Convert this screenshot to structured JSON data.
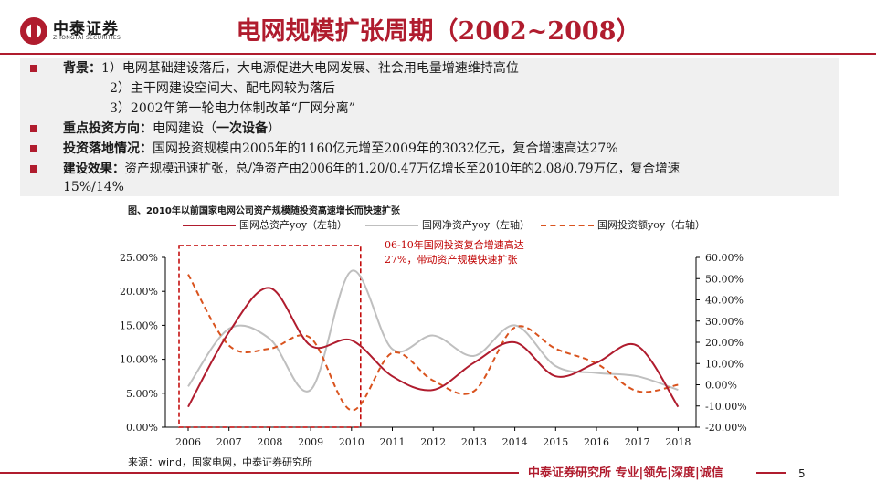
{
  "header": {
    "logo_text": "中泰证券",
    "logo_subtext": "ZHONGTAI SECURITIES",
    "title": "电网规模扩张周期（2002~2008）"
  },
  "summary": {
    "background_label": "背景：",
    "background_items": [
      "1）电网基础建设落后，大电源促进大电网发展、社会用电量增速维持高位",
      "2）主干网建设空间大、配电网较为落后",
      "3）2002年第一轮电力体制改革“厂网分离”"
    ],
    "focus_label": "重点投资方向：",
    "focus_text": "电网建设（",
    "focus_bold": "一次设备",
    "focus_close": "）",
    "invest_label": "投资落地情况：",
    "invest_text": "国网投资规模由2005年的1160亿元增至2009年的3032亿元，复合增速高达27%",
    "effect_label": "建设效果：",
    "effect_text_1": "资产规模迅速扩张，总/净资产由2006年的1.20/0.47万亿增长至2010年的2.08/0.79万亿，复合增速",
    "effect_text_2": "15%/14%"
  },
  "chart_data": {
    "type": "line",
    "title": "图、2010年以前国家电网公司资产规模随投资高速增长而快速扩张",
    "x": [
      2006,
      2007,
      2008,
      2009,
      2010,
      2011,
      2012,
      2013,
      2014,
      2015,
      2016,
      2017,
      2018
    ],
    "x_tick_labels": [
      "2006",
      "2007",
      "2008",
      "2009",
      "2010",
      "2011",
      "2012",
      "2013",
      "2014",
      "2015",
      "2016",
      "2017",
      "2018"
    ],
    "y_left_ticks": [
      "0.00%",
      "5.00%",
      "10.00%",
      "15.00%",
      "20.00%",
      "25.00%"
    ],
    "y_right_ticks": [
      "-20.00%",
      "-10.00%",
      "0.00%",
      "10.00%",
      "20.00%",
      "30.00%",
      "40.00%",
      "50.00%",
      "60.00%"
    ],
    "ylim_left": [
      0,
      25
    ],
    "ylim_right": [
      -20,
      60
    ],
    "series": [
      {
        "name": "国网总资产yoy（左轴）",
        "axis": "left",
        "color": "#b01c2e",
        "style": "solid",
        "values": [
          3.0,
          14.0,
          20.5,
          12.0,
          12.8,
          7.5,
          5.5,
          9.5,
          12.5,
          7.5,
          9.5,
          12.0,
          3.0
        ]
      },
      {
        "name": "国网净资产yoy（左轴）",
        "axis": "left",
        "color": "#bfbfbf",
        "style": "solid",
        "values": [
          6.0,
          14.5,
          13.0,
          5.5,
          23.0,
          11.5,
          13.5,
          10.5,
          15.0,
          9.0,
          8.0,
          7.5,
          5.5
        ]
      },
      {
        "name": "国网投资额yoy（右轴）",
        "axis": "right",
        "color": "#d9531e",
        "style": "dashed",
        "values": [
          52.0,
          18.5,
          17.0,
          22.0,
          -12.0,
          15.0,
          2.0,
          -3.0,
          27.0,
          17.0,
          10.0,
          -3.0,
          0.0
        ]
      }
    ],
    "annotation": [
      "06-10年国网投资复合增速高达",
      "27%，带动资产规模快速扩张"
    ],
    "highlight_range": [
      2006,
      2010
    ],
    "grid": false,
    "legend": "top"
  },
  "footer": {
    "source": "来源：wind，国家电网，中泰证券研究所",
    "tagline": "中泰证券研究所 专业|领先|深度|诚信",
    "page_number": "5"
  },
  "colors": {
    "brand_red": "#b01c2e",
    "invest_orange": "#d9531e",
    "net_gray": "#bfbfbf",
    "box_bg": "#f0f0f0"
  }
}
